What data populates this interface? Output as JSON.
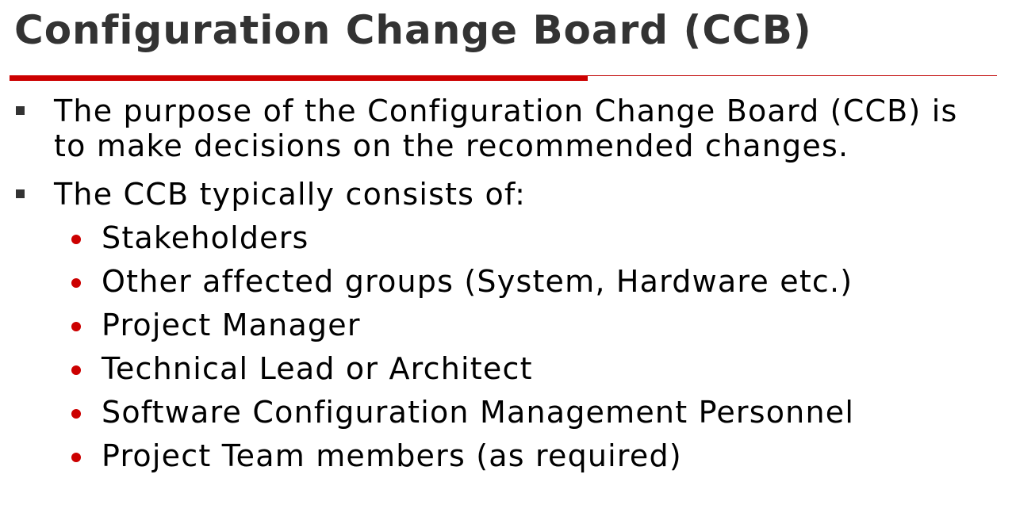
{
  "slide": {
    "title": "Configuration Change Board (CCB)",
    "accent_color": "#cc0000",
    "bullets": [
      {
        "text": "The purpose of the Configuration Change Board (CCB) is to make decisions on the recommended changes.",
        "icon": "square-bullet-icon"
      },
      {
        "text": "The CCB typically consists of:",
        "icon": "square-bullet-icon",
        "sub_items": [
          "Stakeholders",
          "Other affected groups (System, Hardware etc.)",
          "Project Manager",
          "Technical Lead or Architect",
          "Software Configuration Management Personnel",
          "Project Team members (as required)"
        ],
        "sub_icon": "round-bullet-icon"
      }
    ]
  }
}
